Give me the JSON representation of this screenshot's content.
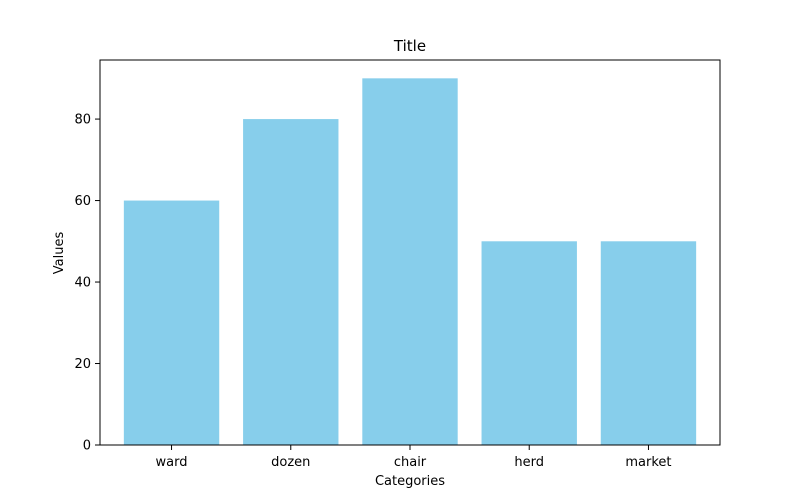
{
  "chart_data": {
    "type": "bar",
    "title": "Title",
    "xlabel": "Categories",
    "ylabel": "Values",
    "categories": [
      "ward",
      "dozen",
      "chair",
      "herd",
      "market"
    ],
    "values": [
      60,
      80,
      90,
      50,
      50
    ],
    "ylim": [
      0,
      94.5
    ],
    "yticks": [
      0,
      20,
      40,
      60,
      80
    ],
    "ytick_labels": [
      "0",
      "20",
      "40",
      "60",
      "80"
    ],
    "grid": false,
    "legend": "none",
    "bar_color": "#87ceeb"
  }
}
